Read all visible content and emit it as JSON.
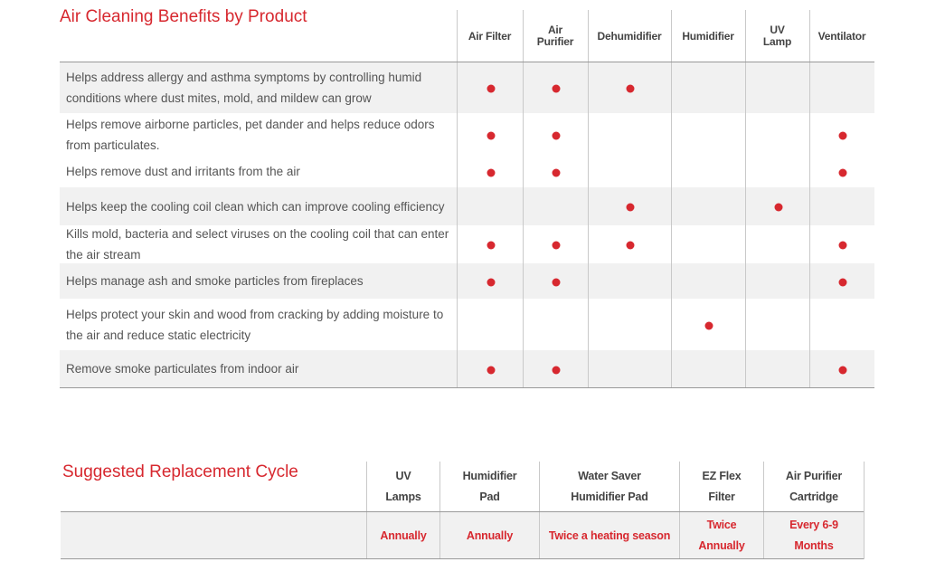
{
  "benefits_table": {
    "title": "Air Cleaning Benefits by Product",
    "columns": [
      {
        "line1": "Air Filter",
        "line2": ""
      },
      {
        "line1": "Air",
        "line2": "Purifier"
      },
      {
        "line1": "Dehumidifier",
        "line2": ""
      },
      {
        "line1": "Humidifier",
        "line2": ""
      },
      {
        "line1": "UV",
        "line2": "Lamp"
      },
      {
        "line1": "Ventilator",
        "line2": ""
      }
    ],
    "rows": [
      {
        "text": "Helps address allergy and asthma symptoms by controlling humid conditions where dust mites, mold, and mildew can grow",
        "marks": [
          true,
          true,
          true,
          false,
          false,
          false
        ]
      },
      {
        "text": "Helps remove airborne particles, pet dander and helps reduce odors from particulates.",
        "marks": [
          true,
          true,
          false,
          false,
          false,
          true
        ]
      },
      {
        "text": "Helps remove dust and irritants from the air",
        "marks": [
          true,
          true,
          false,
          false,
          false,
          true
        ]
      },
      {
        "text": "Helps keep the cooling coil clean which can improve cooling efficiency",
        "marks": [
          false,
          false,
          true,
          false,
          true,
          false
        ]
      },
      {
        "text": "Kills mold, bacteria and select viruses on the cooling coil that can enter the air stream",
        "marks": [
          true,
          true,
          true,
          false,
          false,
          true
        ]
      },
      {
        "text": "Helps manage ash and smoke particles from fireplaces",
        "marks": [
          true,
          true,
          false,
          false,
          false,
          true
        ]
      },
      {
        "text": "Helps protect your skin and wood from cracking by adding moisture to the air and reduce static electricity",
        "marks": [
          false,
          false,
          false,
          true,
          false,
          false
        ]
      },
      {
        "text": "Remove smoke particulates from indoor air",
        "marks": [
          true,
          true,
          false,
          false,
          false,
          true
        ]
      }
    ]
  },
  "replacement_table": {
    "title": "Suggested Replacement Cycle",
    "columns": [
      {
        "line1": "UV",
        "line2": "Lamps",
        "value1": "Annually",
        "value2": ""
      },
      {
        "line1": "Humidifier",
        "line2": "Pad",
        "value1": "Annually",
        "value2": ""
      },
      {
        "line1": "Water Saver",
        "line2": "Humidifier Pad",
        "value1": "Twice a heating season",
        "value2": ""
      },
      {
        "line1": "EZ Flex",
        "line2": "Filter",
        "value1": "Twice",
        "value2": "Annually"
      },
      {
        "line1": "Air Purifier",
        "line2": "Cartridge",
        "value1": "Every 6-9",
        "value2": "Months"
      }
    ]
  },
  "colors": {
    "accent": "#d7282f",
    "row_shade": "#f1f1f1",
    "text": "#555555"
  }
}
